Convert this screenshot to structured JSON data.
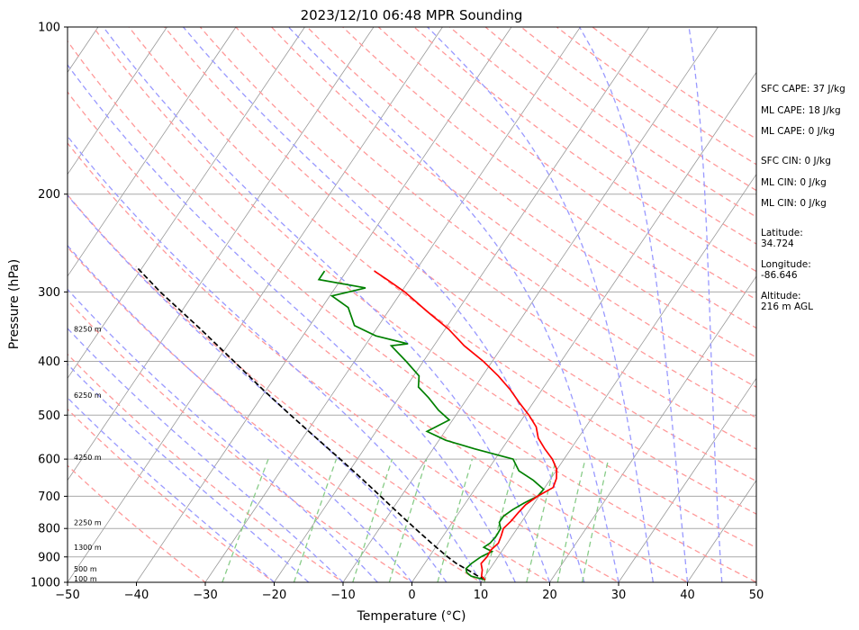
{
  "chart_data": {
    "type": "line",
    "title": "2023/12/10 06:48 MPR Sounding",
    "xlabel": "Temperature (°C)",
    "ylabel": "Pressure (hPa)",
    "xlim": [
      -50,
      50
    ],
    "ylim": [
      1000,
      100
    ],
    "y_scale": "log",
    "grid": true,
    "x_ticks": [
      "−50",
      "−40",
      "−30",
      "−20",
      "−10",
      "0",
      "10",
      "20",
      "30",
      "40",
      "50"
    ],
    "y_ticks": [
      "100",
      "200",
      "300",
      "400",
      "500",
      "600",
      "700",
      "800",
      "900",
      "1000"
    ],
    "skew_background": [
      "isotherms",
      "dry adiabats",
      "moist adiabats",
      "mixing ratio lines"
    ],
    "height_labels": [
      {
        "text": "100 m",
        "pressure": 985
      },
      {
        "text": "500 m",
        "pressure": 945
      },
      {
        "text": "1300 m",
        "pressure": 865
      },
      {
        "text": "2250 m",
        "pressure": 780
      },
      {
        "text": "4250 m",
        "pressure": 595
      },
      {
        "text": "6250 m",
        "pressure": 460
      },
      {
        "text": "8250 m",
        "pressure": 350
      }
    ],
    "series": [
      {
        "role": "temperature",
        "color": "#ff0000",
        "points": [
          [
            990,
            10.4
          ],
          [
            975,
            9.5
          ],
          [
            950,
            9.0
          ],
          [
            925,
            8.2
          ],
          [
            900,
            8.4
          ],
          [
            875,
            8.3
          ],
          [
            850,
            8.7
          ],
          [
            825,
            8.4
          ],
          [
            800,
            8.0
          ],
          [
            775,
            8.4
          ],
          [
            750,
            8.6
          ],
          [
            725,
            8.9
          ],
          [
            700,
            9.8
          ],
          [
            675,
            11.2
          ],
          [
            650,
            10.8
          ],
          [
            625,
            9.9
          ],
          [
            600,
            8.3
          ],
          [
            575,
            6.2
          ],
          [
            550,
            4.2
          ],
          [
            525,
            2.8
          ],
          [
            500,
            0.6
          ],
          [
            475,
            -2.0
          ],
          [
            450,
            -4.6
          ],
          [
            425,
            -7.7
          ],
          [
            400,
            -11.3
          ],
          [
            375,
            -15.6
          ],
          [
            350,
            -19.5
          ],
          [
            325,
            -24.4
          ],
          [
            300,
            -29.5
          ],
          [
            285,
            -33.3
          ],
          [
            275,
            -36.0
          ]
        ]
      },
      {
        "role": "dewpoint",
        "color": "#008000",
        "points": [
          [
            990,
            10.4
          ],
          [
            975,
            8.0
          ],
          [
            960,
            7.0
          ],
          [
            945,
            6.5
          ],
          [
            925,
            6.8
          ],
          [
            900,
            7.5
          ],
          [
            880,
            8.6
          ],
          [
            865,
            7.0
          ],
          [
            850,
            7.5
          ],
          [
            825,
            7.7
          ],
          [
            800,
            7.6
          ],
          [
            780,
            6.8
          ],
          [
            760,
            6.8
          ],
          [
            740,
            7.5
          ],
          [
            720,
            8.5
          ],
          [
            700,
            9.8
          ],
          [
            680,
            10.0
          ],
          [
            655,
            7.6
          ],
          [
            630,
            4.6
          ],
          [
            600,
            2.6
          ],
          [
            575,
            -4.0
          ],
          [
            555,
            -9.0
          ],
          [
            535,
            -12.6
          ],
          [
            510,
            -10.5
          ],
          [
            490,
            -13.0
          ],
          [
            465,
            -15.7
          ],
          [
            445,
            -18.2
          ],
          [
            425,
            -19.2
          ],
          [
            400,
            -22.5
          ],
          [
            375,
            -26.2
          ],
          [
            372,
            -24.0
          ],
          [
            360,
            -29.4
          ],
          [
            345,
            -33.5
          ],
          [
            320,
            -36.2
          ],
          [
            305,
            -39.7
          ],
          [
            295,
            -35.6
          ],
          [
            285,
            -43.2
          ],
          [
            275,
            -43.2
          ]
        ]
      },
      {
        "role": "parcel profile",
        "color": "#000000",
        "points": [
          [
            990,
            10.4
          ],
          [
            975,
            9.0
          ],
          [
            950,
            6.9
          ],
          [
            925,
            4.6
          ],
          [
            900,
            2.7
          ],
          [
            850,
            -1.0
          ],
          [
            800,
            -4.8
          ],
          [
            750,
            -8.8
          ],
          [
            700,
            -13.0
          ],
          [
            650,
            -17.5
          ],
          [
            600,
            -22.5
          ],
          [
            550,
            -28.0
          ],
          [
            500,
            -34.0
          ],
          [
            450,
            -40.5
          ],
          [
            400,
            -47.5
          ],
          [
            350,
            -55.5
          ],
          [
            300,
            -65.0
          ],
          [
            270,
            -71.0
          ]
        ]
      }
    ],
    "annotations": [
      "SFC CAPE: 37 J/kg",
      "ML CAPE: 18 J/kg",
      "ML CAPE: 0 J/kg",
      "SFC CIN: 0 J/kg",
      "ML CIN: 0 J/kg",
      "ML CIN: 0 J/kg",
      "Latitude:",
      "34.724",
      "Longitude:",
      "-86.646",
      "Altitude:",
      "216 m AGL"
    ]
  },
  "colors": {
    "temperature": "#ff0000",
    "dewpoint": "#008000",
    "parcel": "#000000",
    "isotherm": "#999999",
    "dry_adiabat": "#ff9999",
    "moist_adiabat": "#9999ff",
    "mixing_ratio": "#88cc88"
  }
}
